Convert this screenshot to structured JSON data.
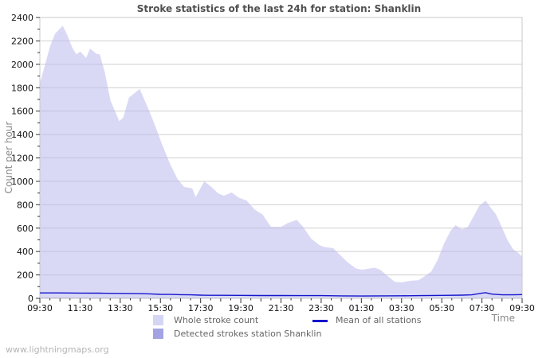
{
  "page": {
    "watermark": "www.lightningmaps.org",
    "background_color": "#ffffff",
    "title_color": "#4f4f4f",
    "axis_title_color": "#8a8a8a",
    "tick_label_color": "#111111",
    "grid_color": "#cfcfcf",
    "plot_border_color": "#c8c8c8"
  },
  "chart_data": {
    "type": "area",
    "title": "Stroke statistics of the last 24h for station: Shanklin",
    "xlabel": "Time",
    "ylabel": "Count per hour",
    "ylim": [
      0,
      2400
    ],
    "y_major_step": 200,
    "y_minor_step": 100,
    "x_range_minutes": [
      0,
      1440
    ],
    "x_major_tick_minutes": 120,
    "x_minor_tick_minutes": 30,
    "x_tick_labels": [
      "09:30",
      "11:30",
      "13:30",
      "15:30",
      "17:30",
      "19:30",
      "21:30",
      "23:30",
      "01:30",
      "03:30",
      "05:30",
      "07:30",
      "09:30"
    ],
    "grid": true,
    "legend_position": "bottom",
    "series": [
      {
        "name": "Whole stroke count",
        "type": "area",
        "color": "#b9b9ec",
        "fill_opacity": 0.55,
        "swatch": "#d5d5f4",
        "points": [
          [
            0,
            1840
          ],
          [
            15,
            1990
          ],
          [
            30,
            2150
          ],
          [
            45,
            2260
          ],
          [
            68,
            2330
          ],
          [
            82,
            2250
          ],
          [
            97,
            2140
          ],
          [
            109,
            2085
          ],
          [
            121,
            2110
          ],
          [
            138,
            2055
          ],
          [
            150,
            2135
          ],
          [
            169,
            2090
          ],
          [
            179,
            2085
          ],
          [
            194,
            1930
          ],
          [
            211,
            1690
          ],
          [
            237,
            1515
          ],
          [
            249,
            1545
          ],
          [
            266,
            1715
          ],
          [
            281,
            1750
          ],
          [
            298,
            1790
          ],
          [
            327,
            1600
          ],
          [
            346,
            1460
          ],
          [
            363,
            1330
          ],
          [
            387,
            1160
          ],
          [
            411,
            1020
          ],
          [
            431,
            952
          ],
          [
            455,
            940
          ],
          [
            465,
            865
          ],
          [
            491,
            1000
          ],
          [
            513,
            950
          ],
          [
            532,
            898
          ],
          [
            549,
            877
          ],
          [
            573,
            905
          ],
          [
            593,
            862
          ],
          [
            617,
            836
          ],
          [
            641,
            760
          ],
          [
            665,
            715
          ],
          [
            690,
            612
          ],
          [
            720,
            610
          ],
          [
            738,
            640
          ],
          [
            767,
            672
          ],
          [
            786,
            612
          ],
          [
            810,
            510
          ],
          [
            835,
            455
          ],
          [
            847,
            440
          ],
          [
            876,
            428
          ],
          [
            895,
            374
          ],
          [
            920,
            306
          ],
          [
            944,
            255
          ],
          [
            961,
            245
          ],
          [
            980,
            252
          ],
          [
            999,
            262
          ],
          [
            1016,
            245
          ],
          [
            1035,
            200
          ],
          [
            1060,
            140
          ],
          [
            1082,
            138
          ],
          [
            1108,
            150
          ],
          [
            1130,
            155
          ],
          [
            1149,
            188
          ],
          [
            1169,
            230
          ],
          [
            1188,
            330
          ],
          [
            1207,
            470
          ],
          [
            1227,
            580
          ],
          [
            1241,
            625
          ],
          [
            1261,
            590
          ],
          [
            1278,
            612
          ],
          [
            1295,
            700
          ],
          [
            1312,
            790
          ],
          [
            1331,
            835
          ],
          [
            1350,
            760
          ],
          [
            1362,
            718
          ],
          [
            1379,
            610
          ],
          [
            1396,
            500
          ],
          [
            1413,
            420
          ],
          [
            1430,
            385
          ],
          [
            1440,
            355
          ]
        ]
      },
      {
        "name": "Detected strokes station Shanklin",
        "type": "area",
        "color": "#9b9be0",
        "fill_opacity": 1,
        "swatch": "#a3a3e4",
        "points": [
          [
            0,
            6
          ],
          [
            240,
            5
          ],
          [
            480,
            4
          ],
          [
            720,
            3
          ],
          [
            960,
            3
          ],
          [
            1200,
            4
          ],
          [
            1440,
            4
          ]
        ]
      },
      {
        "name": "Mean of all stations",
        "type": "line",
        "color": "#1515cc",
        "swatch": "#1515cc",
        "points": [
          [
            0,
            46
          ],
          [
            60,
            46
          ],
          [
            120,
            45
          ],
          [
            180,
            44
          ],
          [
            240,
            42
          ],
          [
            300,
            40
          ],
          [
            330,
            38
          ],
          [
            360,
            34
          ],
          [
            390,
            33
          ],
          [
            420,
            31
          ],
          [
            450,
            30
          ],
          [
            480,
            27
          ],
          [
            510,
            26
          ],
          [
            540,
            26
          ],
          [
            600,
            25
          ],
          [
            660,
            24
          ],
          [
            720,
            24
          ],
          [
            780,
            23
          ],
          [
            840,
            23
          ],
          [
            900,
            21
          ],
          [
            960,
            20
          ],
          [
            1020,
            21
          ],
          [
            1080,
            22
          ],
          [
            1140,
            23
          ],
          [
            1200,
            25
          ],
          [
            1260,
            27
          ],
          [
            1290,
            30
          ],
          [
            1320,
            45
          ],
          [
            1331,
            48
          ],
          [
            1350,
            36
          ],
          [
            1380,
            30
          ],
          [
            1410,
            30
          ],
          [
            1440,
            32
          ]
        ]
      }
    ]
  }
}
